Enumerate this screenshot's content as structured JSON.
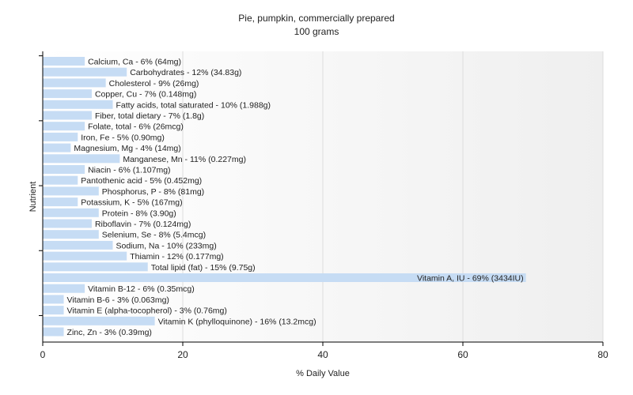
{
  "chart_data": {
    "type": "bar",
    "orientation": "horizontal",
    "title": "Pie, pumpkin, commercially prepared",
    "subtitle": "100 grams",
    "xlabel": "% Daily Value",
    "ylabel": "Nutrient",
    "xlim": [
      0,
      80
    ],
    "xticks": [
      "0",
      "20",
      "40",
      "60",
      "80"
    ],
    "grid": true,
    "colors": {
      "bar": "#c6dcf4",
      "bar_highlight": "#c6dcf4",
      "axis": "#000000",
      "grid": "#dddddd"
    },
    "bars": [
      {
        "category": "Calcium, Ca",
        "value": 6,
        "label": "Calcium, Ca - 6% (64mg)"
      },
      {
        "category": "Carbohydrates",
        "value": 12,
        "label": "Carbohydrates - 12% (34.83g)"
      },
      {
        "category": "Cholesterol",
        "value": 9,
        "label": "Cholesterol - 9% (26mg)"
      },
      {
        "category": "Copper, Cu",
        "value": 7,
        "label": "Copper, Cu - 7% (0.148mg)"
      },
      {
        "category": "Fatty acids, total saturated",
        "value": 10,
        "label": "Fatty acids, total saturated - 10% (1.988g)"
      },
      {
        "category": "Fiber, total dietary",
        "value": 7,
        "label": "Fiber, total dietary - 7% (1.8g)"
      },
      {
        "category": "Folate, total",
        "value": 6,
        "label": "Folate, total - 6% (26mcg)"
      },
      {
        "category": "Iron, Fe",
        "value": 5,
        "label": "Iron, Fe - 5% (0.90mg)"
      },
      {
        "category": "Magnesium, Mg",
        "value": 4,
        "label": "Magnesium, Mg - 4% (14mg)"
      },
      {
        "category": "Manganese, Mn",
        "value": 11,
        "label": "Manganese, Mn - 11% (0.227mg)"
      },
      {
        "category": "Niacin",
        "value": 6,
        "label": "Niacin - 6% (1.107mg)"
      },
      {
        "category": "Pantothenic acid",
        "value": 5,
        "label": "Pantothenic acid - 5% (0.452mg)"
      },
      {
        "category": "Phosphorus, P",
        "value": 8,
        "label": "Phosphorus, P - 8% (81mg)"
      },
      {
        "category": "Potassium, K",
        "value": 5,
        "label": "Potassium, K - 5% (167mg)"
      },
      {
        "category": "Protein",
        "value": 8,
        "label": "Protein - 8% (3.90g)"
      },
      {
        "category": "Riboflavin",
        "value": 7,
        "label": "Riboflavin - 7% (0.124mg)"
      },
      {
        "category": "Selenium, Se",
        "value": 8,
        "label": "Selenium, Se - 8% (5.4mcg)"
      },
      {
        "category": "Sodium, Na",
        "value": 10,
        "label": "Sodium, Na - 10% (233mg)"
      },
      {
        "category": "Thiamin",
        "value": 12,
        "label": "Thiamin - 12% (0.177mg)"
      },
      {
        "category": "Total lipid (fat)",
        "value": 15,
        "label": "Total lipid (fat) - 15% (9.75g)"
      },
      {
        "category": "Vitamin A, IU",
        "value": 69,
        "label": "Vitamin A, IU - 69% (3434IU)"
      },
      {
        "category": "Vitamin B-12",
        "value": 6,
        "label": "Vitamin B-12 - 6% (0.35mcg)"
      },
      {
        "category": "Vitamin B-6",
        "value": 3,
        "label": "Vitamin B-6 - 3% (0.063mg)"
      },
      {
        "category": "Vitamin E (alpha-tocopherol)",
        "value": 3,
        "label": "Vitamin E (alpha-tocopherol) - 3% (0.76mg)"
      },
      {
        "category": "Vitamin K (phylloquinone)",
        "value": 16,
        "label": "Vitamin K (phylloquinone) - 16% (13.2mcg)"
      },
      {
        "category": "Zinc, Zn",
        "value": 3,
        "label": "Zinc, Zn - 3% (0.39mg)"
      }
    ]
  }
}
